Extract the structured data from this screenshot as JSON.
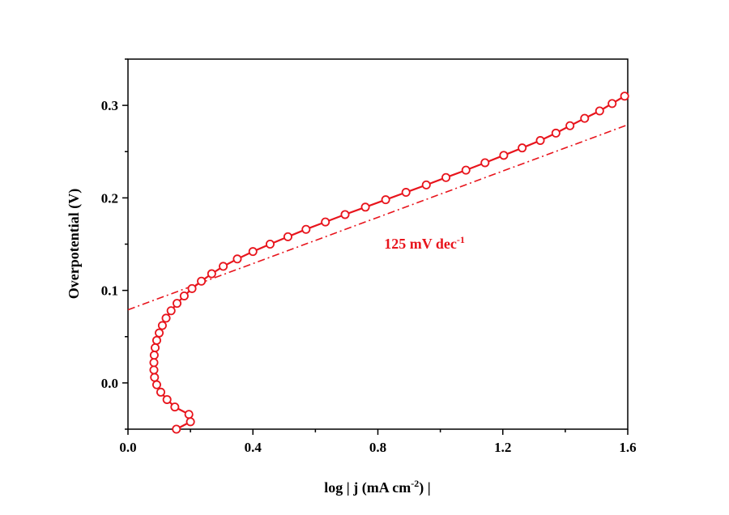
{
  "chart_data": {
    "type": "scatter",
    "xlabel": "log | j (mA cm",
    "xlabel_sup": "-2",
    "xlabel_end": ") |",
    "ylabel": "Overpotential (V)",
    "xlim": [
      0.0,
      1.6
    ],
    "ylim": [
      -0.05,
      0.35
    ],
    "xticks": [
      0.0,
      0.4,
      0.8,
      1.2,
      1.6
    ],
    "xtick_labels": [
      "0.0",
      "0.4",
      "0.8",
      "1.2",
      "1.6"
    ],
    "yticks": [
      0.0,
      0.1,
      0.2,
      0.3
    ],
    "ytick_labels": [
      "0.0",
      "0.1",
      "0.2",
      "0.3"
    ],
    "grid": false,
    "series_color": "#e8141c",
    "series": [
      {
        "style": "line+open-circle",
        "x": [
          0.155,
          0.2,
          0.195,
          0.15,
          0.125,
          0.105,
          0.092,
          0.085,
          0.083,
          0.083,
          0.084,
          0.087,
          0.092,
          0.1,
          0.11,
          0.122,
          0.138,
          0.157,
          0.18,
          0.205,
          0.235,
          0.268,
          0.305,
          0.35,
          0.4,
          0.455,
          0.512,
          0.57,
          0.632,
          0.695,
          0.76,
          0.825,
          0.89,
          0.955,
          1.018,
          1.082,
          1.143,
          1.203,
          1.262,
          1.32,
          1.37,
          1.415,
          1.462,
          1.51,
          1.55,
          1.59
        ],
        "y": [
          -0.05,
          -0.042,
          -0.034,
          -0.026,
          -0.018,
          -0.01,
          -0.002,
          0.006,
          0.014,
          0.022,
          0.03,
          0.038,
          0.046,
          0.054,
          0.062,
          0.07,
          0.078,
          0.086,
          0.094,
          0.102,
          0.11,
          0.118,
          0.126,
          0.134,
          0.142,
          0.15,
          0.158,
          0.166,
          0.174,
          0.182,
          0.19,
          0.198,
          0.206,
          0.214,
          0.222,
          0.23,
          0.238,
          0.246,
          0.254,
          0.262,
          0.27,
          0.278,
          0.286,
          0.294,
          0.302,
          0.31
        ]
      },
      {
        "style": "dash-dot-fit",
        "x": [
          0.0,
          1.6
        ],
        "y": [
          0.079,
          0.279
        ]
      }
    ],
    "annotation": {
      "text": "125 mV dec",
      "sup": "-1",
      "x": 0.82,
      "y": 0.145
    }
  }
}
